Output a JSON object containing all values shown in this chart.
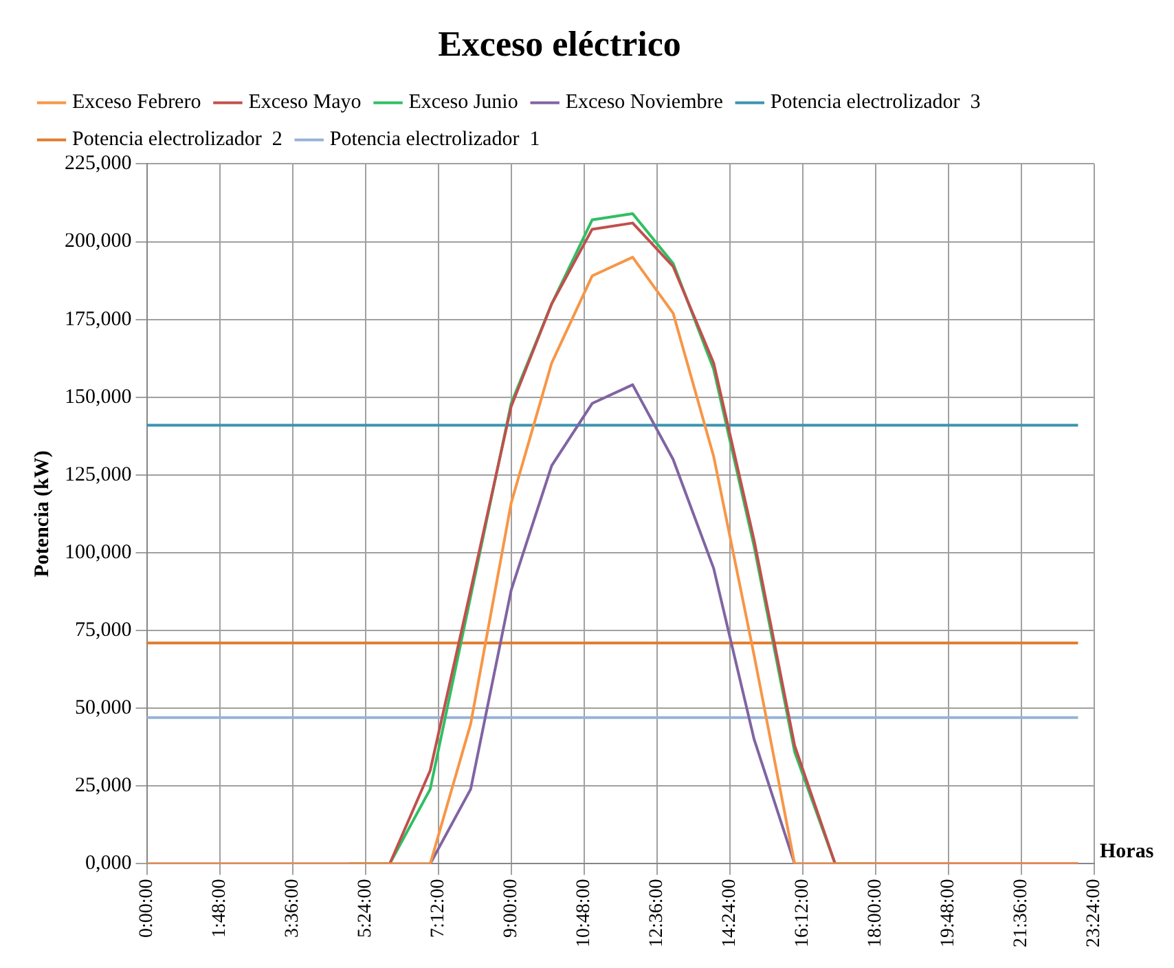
{
  "chart_data": {
    "type": "line",
    "title": "Exceso eléctrico",
    "xlabel": "Horas",
    "ylabel": "Potencia (kW)",
    "x": [
      0,
      1,
      2,
      3,
      4,
      5,
      6,
      7,
      8,
      9,
      10,
      11,
      12,
      13,
      14,
      15,
      16,
      17,
      18,
      19,
      20,
      21,
      22,
      23
    ],
    "xlim": [
      0,
      23.4
    ],
    "xticks": [
      {
        "value": 0,
        "label": "0:00:00"
      },
      {
        "value": 1.8,
        "label": "1:48:00"
      },
      {
        "value": 3.6,
        "label": "3:36:00"
      },
      {
        "value": 5.4,
        "label": "5:24:00"
      },
      {
        "value": 7.2,
        "label": "7:12:00"
      },
      {
        "value": 9,
        "label": "9:00:00"
      },
      {
        "value": 10.8,
        "label": "10:48:00"
      },
      {
        "value": 12.6,
        "label": "12:36:00"
      },
      {
        "value": 14.4,
        "label": "14:24:00"
      },
      {
        "value": 16.2,
        "label": "16:12:00"
      },
      {
        "value": 18,
        "label": "18:00:00"
      },
      {
        "value": 19.8,
        "label": "19:48:00"
      },
      {
        "value": 21.6,
        "label": "21:36:00"
      },
      {
        "value": 23.4,
        "label": "23:24:00"
      }
    ],
    "ylim": [
      0,
      225000
    ],
    "yticks": [
      {
        "value": 0,
        "label": "0,000"
      },
      {
        "value": 25000,
        "label": "25,000"
      },
      {
        "value": 50000,
        "label": "50,000"
      },
      {
        "value": 75000,
        "label": "75,000"
      },
      {
        "value": 100000,
        "label": "100,000"
      },
      {
        "value": 125000,
        "label": "125,000"
      },
      {
        "value": 150000,
        "label": "150,000"
      },
      {
        "value": 175000,
        "label": "175,000"
      },
      {
        "value": 200000,
        "label": "200,000"
      },
      {
        "value": 225000,
        "label": "225,000"
      }
    ],
    "grid": true,
    "legend": "top",
    "marker": "none",
    "line_style": "solid",
    "series": [
      {
        "name": "Exceso Febrero",
        "color": "#f79646",
        "values": [
          0,
          0,
          0,
          0,
          0,
          0,
          0,
          0,
          45000,
          116000,
          161000,
          189000,
          195000,
          177000,
          131000,
          67000,
          0,
          0,
          0,
          0,
          0,
          0,
          0,
          0
        ]
      },
      {
        "name": "Exceso Mayo",
        "color": "#c0504d",
        "values": [
          null,
          null,
          null,
          null,
          null,
          0,
          0,
          30000,
          88000,
          147000,
          180000,
          204000,
          206000,
          192000,
          161000,
          104000,
          38000,
          0,
          0,
          0,
          0,
          0,
          0,
          0
        ]
      },
      {
        "name": "Exceso Junio",
        "color": "#2fbf62",
        "values": [
          null,
          null,
          null,
          null,
          null,
          0,
          0,
          24000,
          86000,
          148000,
          180000,
          207000,
          209000,
          193000,
          159000,
          102000,
          36000,
          0,
          0,
          null,
          null,
          null,
          null,
          null
        ]
      },
      {
        "name": "Exceso Noviembre",
        "color": "#8064a2",
        "values": [
          0,
          0,
          0,
          0,
          0,
          0,
          0,
          0,
          24000,
          88000,
          128000,
          148000,
          154000,
          130000,
          95000,
          40000,
          0,
          0,
          0,
          0,
          0,
          0,
          0,
          0
        ]
      },
      {
        "name": "Potencia electrolizador  3",
        "color": "#3a94b0",
        "values": [
          141000,
          141000,
          141000,
          141000,
          141000,
          141000,
          141000,
          141000,
          141000,
          141000,
          141000,
          141000,
          141000,
          141000,
          141000,
          141000,
          141000,
          141000,
          141000,
          141000,
          141000,
          141000,
          141000,
          141000
        ]
      },
      {
        "name": "Potencia electrolizador  2",
        "color": "#e07b2c",
        "values": [
          71000,
          71000,
          71000,
          71000,
          71000,
          71000,
          71000,
          71000,
          71000,
          71000,
          71000,
          71000,
          71000,
          71000,
          71000,
          71000,
          71000,
          71000,
          71000,
          71000,
          71000,
          71000,
          71000,
          71000
        ]
      },
      {
        "name": "Potencia electrolizador  1",
        "color": "#95b3d7",
        "values": [
          47000,
          47000,
          47000,
          47000,
          47000,
          47000,
          47000,
          47000,
          47000,
          47000,
          47000,
          47000,
          47000,
          47000,
          47000,
          47000,
          47000,
          47000,
          47000,
          47000,
          47000,
          47000,
          47000,
          47000
        ]
      }
    ]
  }
}
